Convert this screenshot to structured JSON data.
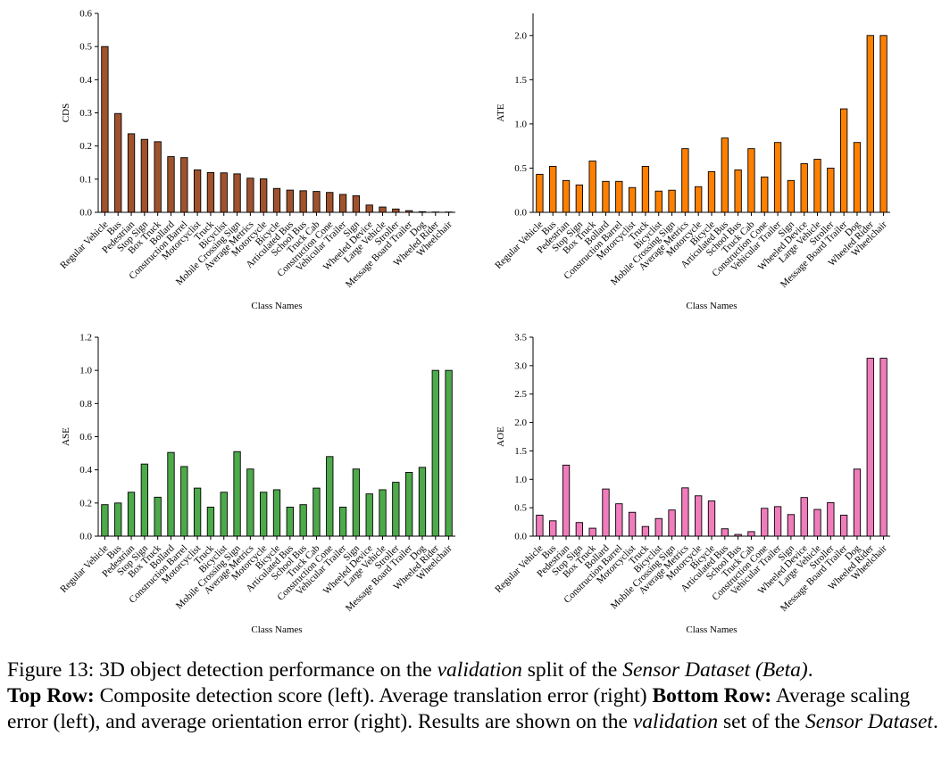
{
  "chart_data": [
    {
      "type": "bar",
      "title": "",
      "xlabel": "Class Names",
      "ylabel": "CDS",
      "ylim": [
        0,
        0.6
      ],
      "yticks": [
        "0.0",
        "0.1",
        "0.2",
        "0.3",
        "0.4",
        "0.5",
        "0.6"
      ],
      "color": "#a0522d",
      "categories": [
        "Regular Vehicle",
        "Bus",
        "Pedestrian",
        "Stop Sign",
        "Box Truck",
        "Bollard",
        "Construction Barrel",
        "Motorcyclist",
        "Truck",
        "Bicyclist",
        "Mobile Crossing Sign",
        "Average Metrics",
        "Motorcycle",
        "Bicycle",
        "Articulated Bus",
        "School Bus",
        "Truck Cab",
        "Construction Cone",
        "Vehicular Trailer",
        "Sign",
        "Wheeled Device",
        "Large Vehicle",
        "Stroller",
        "Message Board Trailer",
        "Dog",
        "Wheeled Rider",
        "Wheelchair"
      ],
      "values": [
        0.5,
        0.298,
        0.237,
        0.22,
        0.213,
        0.168,
        0.165,
        0.128,
        0.12,
        0.119,
        0.116,
        0.103,
        0.101,
        0.072,
        0.067,
        0.065,
        0.063,
        0.06,
        0.054,
        0.05,
        0.022,
        0.016,
        0.01,
        0.005,
        0.002,
        0.001,
        0.001
      ]
    },
    {
      "type": "bar",
      "title": "",
      "xlabel": "Class Names",
      "ylabel": "ATE",
      "ylim": [
        0,
        2.25
      ],
      "yticks": [
        "0.0",
        "0.5",
        "1.0",
        "1.5",
        "2.0"
      ],
      "color": "#ff8000",
      "categories": [
        "Regular Vehicle",
        "Bus",
        "Pedestrian",
        "Stop Sign",
        "Box Truck",
        "Bollard",
        "Construction Barrel",
        "Motorcyclist",
        "Truck",
        "Bicyclist",
        "Mobile Crossing Sign",
        "Average Metrics",
        "Motorcycle",
        "Bicycle",
        "Articulated Bus",
        "School Bus",
        "Truck Cab",
        "Construction Cone",
        "Vehicular Trailer",
        "Sign",
        "Wheeled Device",
        "Large Vehicle",
        "Stroller",
        "Message Board Trailer",
        "Dog",
        "Wheeled Rider",
        "Wheelchair"
      ],
      "values": [
        0.43,
        0.52,
        0.36,
        0.31,
        0.58,
        0.35,
        0.35,
        0.28,
        0.52,
        0.24,
        0.25,
        0.72,
        0.29,
        0.46,
        0.84,
        0.48,
        0.72,
        0.4,
        0.79,
        0.36,
        0.55,
        0.6,
        0.5,
        1.17,
        0.79,
        2.0,
        2.0
      ]
    },
    {
      "type": "bar",
      "title": "",
      "xlabel": "Class Names",
      "ylabel": "ASE",
      "ylim": [
        0,
        1.2
      ],
      "yticks": [
        "0.0",
        "0.2",
        "0.4",
        "0.6",
        "0.8",
        "1.0",
        "1.2"
      ],
      "color": "#4daa4a",
      "categories": [
        "Regular Vehicle",
        "Bus",
        "Pedestrian",
        "Stop Sign",
        "Box Truck",
        "Bollard",
        "Construction Barrel",
        "Motorcyclist",
        "Truck",
        "Bicyclist",
        "Mobile Crossing Sign",
        "Average Metrics",
        "Motorcycle",
        "Bicycle",
        "Articulated Bus",
        "School Bus",
        "Truck Cab",
        "Construction Cone",
        "Vehicular Trailer",
        "Sign",
        "Wheeled Device",
        "Large Vehicle",
        "Stroller",
        "Message Board Trailer",
        "Dog",
        "Wheeled Rider",
        "Wheelchair"
      ],
      "values": [
        0.19,
        0.2,
        0.265,
        0.435,
        0.235,
        0.505,
        0.42,
        0.29,
        0.175,
        0.265,
        0.51,
        0.405,
        0.265,
        0.28,
        0.175,
        0.19,
        0.29,
        0.48,
        0.175,
        0.405,
        0.255,
        0.28,
        0.325,
        0.385,
        0.415,
        1.0,
        1.0
      ]
    },
    {
      "type": "bar",
      "title": "",
      "xlabel": "Class Names",
      "ylabel": "AOE",
      "ylim": [
        0,
        3.5
      ],
      "yticks": [
        "0.0",
        "0.5",
        "1.0",
        "1.5",
        "2.0",
        "2.5",
        "3.0",
        "3.5"
      ],
      "color": "#f07cbc",
      "categories": [
        "Regular Vehicle",
        "Bus",
        "Pedestrian",
        "Stop Sign",
        "Box Truck",
        "Bollard",
        "Construction Barrel",
        "Motorcyclist",
        "Truck",
        "Bicyclist",
        "Mobile Crossing Sign",
        "Average Metrics",
        "Motorcycle",
        "Bicycle",
        "Articulated Bus",
        "School Bus",
        "Truck Cab",
        "Construction Cone",
        "Vehicular Trailer",
        "Sign",
        "Wheeled Device",
        "Large Vehicle",
        "Stroller",
        "Message Board Trailer",
        "Dog",
        "Wheeled Rider",
        "Wheelchair"
      ],
      "values": [
        0.37,
        0.27,
        1.25,
        0.24,
        0.14,
        0.83,
        0.57,
        0.42,
        0.17,
        0.31,
        0.46,
        0.85,
        0.71,
        0.62,
        0.13,
        0.03,
        0.08,
        0.49,
        0.52,
        0.38,
        0.68,
        0.47,
        0.59,
        0.37,
        1.18,
        3.13,
        3.13
      ]
    }
  ],
  "caption": {
    "label": "Figure 13:",
    "text1": " 3D object detection performance on the ",
    "em1": "validation",
    "text2": " split of the ",
    "em2": "Sensor Dataset (Beta)",
    "text3": ".",
    "top_row": "Top Row:",
    "text4": " Composite detection score (left). Average translation error (right) ",
    "bottom_row": "Bottom Row:",
    "text5": " Average scaling error (left), and average orientation error (right). Results are shown on the ",
    "em3": "validation",
    "text6": " set of the ",
    "em4": "Sensor Dataset",
    "text7": "."
  }
}
